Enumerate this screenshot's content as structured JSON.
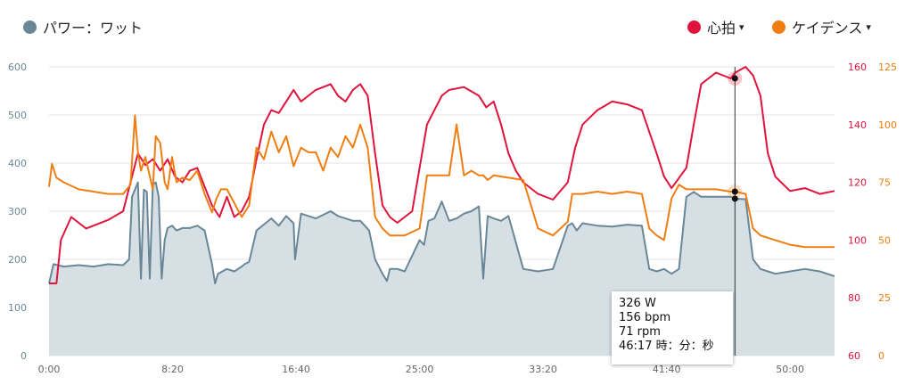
{
  "legend": {
    "power": {
      "label": "パワー：ワット",
      "color": "#6a8798"
    },
    "hr": {
      "label": "心拍",
      "color": "#e0133c",
      "caret": "▾"
    },
    "cadence": {
      "label": "ケイデンス",
      "color": "#f07d12",
      "caret": "▾"
    }
  },
  "tooltip": {
    "power": "326 W",
    "hr": "156 bpm",
    "cadence": "71 rpm",
    "time": "46:17 時：分：秒"
  },
  "chart_data": {
    "type": "line",
    "x_unit": "minutes",
    "xlim": [
      0,
      53
    ],
    "x_ticks": [
      {
        "value": 0,
        "label": "0:00"
      },
      {
        "value": 8.333,
        "label": "8:20"
      },
      {
        "value": 16.667,
        "label": "16:40"
      },
      {
        "value": 25,
        "label": "25:00"
      },
      {
        "value": 33.333,
        "label": "33:20"
      },
      {
        "value": 41.667,
        "label": "41:40"
      },
      {
        "value": 50,
        "label": "50:00"
      }
    ],
    "y_axes": {
      "power": {
        "range": [
          0,
          600
        ],
        "ticks": [
          "0",
          "100",
          "200",
          "300",
          "400",
          "500",
          "600"
        ],
        "color": "#6a8798"
      },
      "hr": {
        "range": [
          60,
          160
        ],
        "ticks": [
          "60",
          "80",
          "100",
          "120",
          "140",
          "160"
        ],
        "color": "#e0133c"
      },
      "cadence": {
        "range": [
          0,
          125
        ],
        "ticks": [
          "0",
          "25",
          "50",
          "75",
          "100",
          "125"
        ],
        "color": "#f07d12"
      }
    },
    "grid": true,
    "cursor_x": 46.28,
    "series": [
      {
        "name": "パワー：ワット",
        "key": "power",
        "style": "area",
        "color": "#6a8798",
        "fill": "#d5dfe4",
        "x": [
          0,
          0.3,
          1.0,
          2.0,
          3.0,
          4.0,
          5.0,
          5.4,
          5.6,
          6.0,
          6.2,
          6.4,
          6.6,
          6.8,
          7.0,
          7.2,
          7.4,
          7.6,
          7.8,
          8.0,
          8.3,
          8.6,
          9.0,
          9.5,
          10.0,
          10.5,
          11.0,
          11.2,
          11.4,
          12.0,
          12.5,
          13.0,
          13.2,
          13.5,
          14.0,
          15.0,
          15.5,
          16.0,
          16.5,
          16.6,
          17.0,
          18.0,
          19.0,
          19.5,
          20.0,
          20.5,
          21.0,
          21.3,
          21.6,
          22.0,
          22.5,
          22.8,
          23.0,
          23.5,
          24.0,
          25.0,
          25.3,
          25.6,
          26.0,
          26.5,
          27.0,
          27.5,
          28.0,
          28.5,
          29.0,
          29.3,
          29.6,
          30.0,
          30.5,
          31.0,
          32.0,
          33.0,
          34.0,
          35.0,
          35.3,
          35.6,
          36.0,
          37.0,
          38.0,
          39.0,
          40.0,
          40.5,
          41.0,
          41.5,
          42.0,
          42.5,
          43.0,
          43.5,
          44.0,
          45.0,
          46.0,
          46.3,
          47.0,
          47.5,
          48.0,
          48.5,
          49.0,
          50.0,
          51.0,
          52.0,
          53.0
        ],
        "values": [
          150,
          190,
          185,
          188,
          185,
          190,
          188,
          200,
          330,
          360,
          160,
          345,
          340,
          160,
          355,
          360,
          330,
          160,
          240,
          265,
          270,
          260,
          265,
          265,
          270,
          260,
          190,
          150,
          170,
          180,
          175,
          185,
          190,
          195,
          260,
          285,
          270,
          290,
          275,
          200,
          295,
          285,
          300,
          290,
          285,
          280,
          280,
          270,
          260,
          200,
          170,
          155,
          180,
          180,
          175,
          240,
          230,
          280,
          285,
          320,
          280,
          285,
          295,
          300,
          310,
          160,
          290,
          285,
          280,
          290,
          180,
          175,
          180,
          270,
          275,
          260,
          275,
          270,
          268,
          272,
          270,
          180,
          175,
          180,
          170,
          180,
          330,
          340,
          330,
          330,
          330,
          326,
          325,
          200,
          180,
          175,
          170,
          175,
          180,
          175,
          165
        ]
      },
      {
        "name": "心拍",
        "key": "hr",
        "style": "line",
        "color": "#e0133c",
        "x": [
          0,
          0.5,
          0.8,
          1.5,
          2.5,
          3.0,
          4.0,
          5.0,
          5.5,
          6.0,
          6.5,
          7.0,
          7.5,
          8.0,
          8.5,
          9.0,
          9.5,
          10.0,
          11.0,
          11.5,
          12.0,
          12.5,
          13.0,
          13.5,
          14.0,
          14.5,
          15.0,
          15.5,
          16.0,
          16.5,
          17.0,
          18.0,
          19.0,
          19.5,
          20.0,
          20.5,
          21.0,
          21.5,
          22.0,
          22.5,
          23.0,
          23.5,
          24.0,
          24.5,
          25.0,
          25.5,
          26.0,
          26.5,
          27.0,
          28.0,
          29.0,
          29.5,
          30.0,
          30.5,
          31.0,
          31.5,
          32.0,
          33.0,
          34.0,
          35.0,
          35.5,
          36.0,
          37.0,
          38.0,
          39.0,
          40.0,
          41.0,
          41.5,
          42.0,
          43.0,
          43.5,
          44.0,
          45.0,
          46.0,
          46.3,
          47.0,
          47.5,
          48.0,
          48.5,
          49.0,
          50.0,
          51.0,
          52.0,
          53.0
        ],
        "values": [
          85,
          85,
          100,
          108,
          104,
          105,
          107,
          110,
          120,
          130,
          126,
          128,
          124,
          128,
          122,
          120,
          124,
          125,
          112,
          108,
          115,
          108,
          110,
          115,
          128,
          140,
          145,
          144,
          148,
          152,
          148,
          152,
          154,
          150,
          148,
          152,
          154,
          150,
          130,
          112,
          108,
          106,
          108,
          110,
          125,
          140,
          145,
          150,
          152,
          153,
          150,
          146,
          148,
          140,
          130,
          124,
          120,
          116,
          114,
          120,
          132,
          140,
          145,
          148,
          147,
          145,
          130,
          122,
          118,
          125,
          140,
          154,
          158,
          156,
          158,
          160,
          157,
          150,
          130,
          122,
          117,
          118,
          116,
          117
        ]
      },
      {
        "name": "ケイデンス",
        "key": "cadence",
        "style": "line",
        "color": "#f07d12",
        "x": [
          0,
          0.2,
          0.5,
          1.0,
          2.0,
          3.0,
          4.0,
          5.0,
          5.5,
          5.8,
          6.0,
          6.2,
          6.5,
          7.0,
          7.2,
          7.5,
          7.8,
          8.0,
          8.3,
          8.6,
          9.0,
          9.5,
          10.0,
          10.5,
          11.0,
          11.3,
          11.6,
          12.0,
          12.5,
          13.0,
          13.5,
          14.0,
          14.5,
          15.0,
          15.5,
          16.0,
          16.5,
          17.0,
          17.5,
          18.0,
          18.5,
          19.0,
          19.5,
          20.0,
          20.5,
          21.0,
          21.5,
          22.0,
          22.5,
          23.0,
          24.0,
          25.0,
          25.5,
          26.0,
          27.0,
          27.5,
          28.0,
          28.5,
          29.0,
          29.3,
          29.6,
          30.0,
          31.0,
          32.0,
          33.0,
          34.0,
          35.0,
          35.3,
          35.6,
          36.0,
          37.0,
          38.0,
          39.0,
          40.0,
          40.5,
          41.0,
          41.5,
          42.0,
          42.5,
          43.0,
          44.0,
          45.0,
          46.0,
          46.3,
          47.0,
          47.5,
          48.0,
          49.0,
          50.0,
          51.0,
          52.0,
          53.0
        ],
        "values": [
          73,
          83,
          77,
          75,
          72,
          71,
          70,
          70,
          74,
          104,
          88,
          80,
          86,
          72,
          95,
          92,
          75,
          72,
          86,
          75,
          77,
          76,
          80,
          70,
          62,
          68,
          72,
          72,
          66,
          60,
          65,
          90,
          85,
          97,
          88,
          95,
          82,
          90,
          88,
          88,
          80,
          90,
          86,
          95,
          90,
          100,
          90,
          60,
          55,
          52,
          52,
          55,
          78,
          78,
          78,
          100,
          78,
          80,
          78,
          78,
          76,
          78,
          77,
          76,
          55,
          52,
          58,
          70,
          70,
          70,
          71,
          70,
          71,
          70,
          55,
          52,
          50,
          68,
          74,
          72,
          72,
          72,
          71,
          71,
          70,
          55,
          52,
          50,
          48,
          47,
          47,
          47
        ]
      }
    ]
  }
}
